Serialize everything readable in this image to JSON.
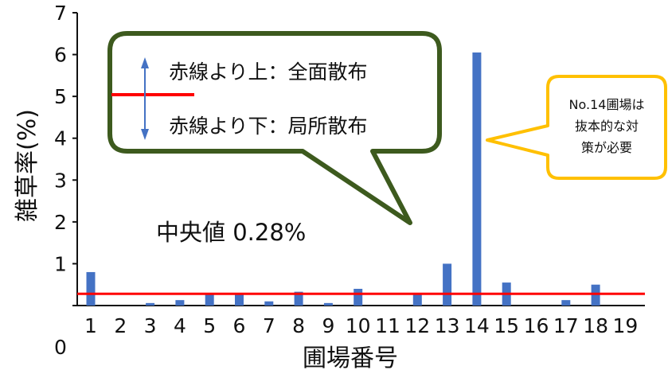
{
  "chart_data": {
    "type": "bar",
    "categories": [
      "1",
      "2",
      "3",
      "4",
      "5",
      "6",
      "7",
      "8",
      "9",
      "10",
      "11",
      "12",
      "13",
      "14",
      "15",
      "16",
      "17",
      "18",
      "19"
    ],
    "values": [
      0.8,
      0,
      0.06,
      0.13,
      0.28,
      0.28,
      0.1,
      0.33,
      0.06,
      0.4,
      0,
      0.28,
      1.0,
      6.05,
      0.55,
      0,
      0.13,
      0.5,
      0
    ],
    "title": "",
    "xlabel": "圃場番号",
    "ylabel": "雑草率(%)",
    "y_tick_labels": [
      "0",
      "1",
      "2",
      "3",
      "4",
      "5",
      "6",
      "7"
    ],
    "ylim": [
      0,
      7
    ],
    "threshold": {
      "value": 0.28,
      "color": "#ff0000"
    },
    "bar_color": "#4472c4",
    "grid": false,
    "annotations": {
      "legend_above": "赤線より上：全面散布",
      "legend_below": "赤線より下：局所散布",
      "median": "中央値  0.28%",
      "callout_lines": [
        "No.14圃場は",
        "抜本的な対",
        "策が必要"
      ]
    },
    "colors": {
      "legend_box_border": "#3d5a1e",
      "callout_border": "#ffc000",
      "arrow": "#4472c4"
    }
  }
}
